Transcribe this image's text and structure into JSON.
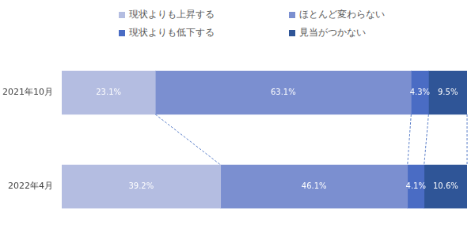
{
  "chart_data": {
    "type": "bar",
    "orientation": "horizontal",
    "stacked": true,
    "categories": [
      "2021年10月",
      "2022年4月"
    ],
    "series": [
      {
        "name": "現状よりも上昇する",
        "color": "#b4bde1",
        "values": [
          23.1,
          39.2
        ],
        "value_labels": [
          "23.1%",
          "39.2%"
        ]
      },
      {
        "name": "ほとんど変わらない",
        "color": "#7b8fd0",
        "values": [
          63.1,
          46.1
        ],
        "value_labels": [
          "63.1%",
          "46.1%"
        ]
      },
      {
        "name": "現状よりも低下する",
        "color": "#4a6cc4",
        "values": [
          4.3,
          4.1
        ],
        "value_labels": [
          "4.3%",
          "4.1%"
        ]
      },
      {
        "name": "見当がつかない",
        "color": "#2f5597",
        "values": [
          9.5,
          10.6
        ],
        "value_labels": [
          "9.5%",
          "10.6%"
        ]
      }
    ],
    "xlim": [
      0,
      100
    ],
    "data_labels": true,
    "legend": "top",
    "tick_labels": "y",
    "grid": false
  }
}
